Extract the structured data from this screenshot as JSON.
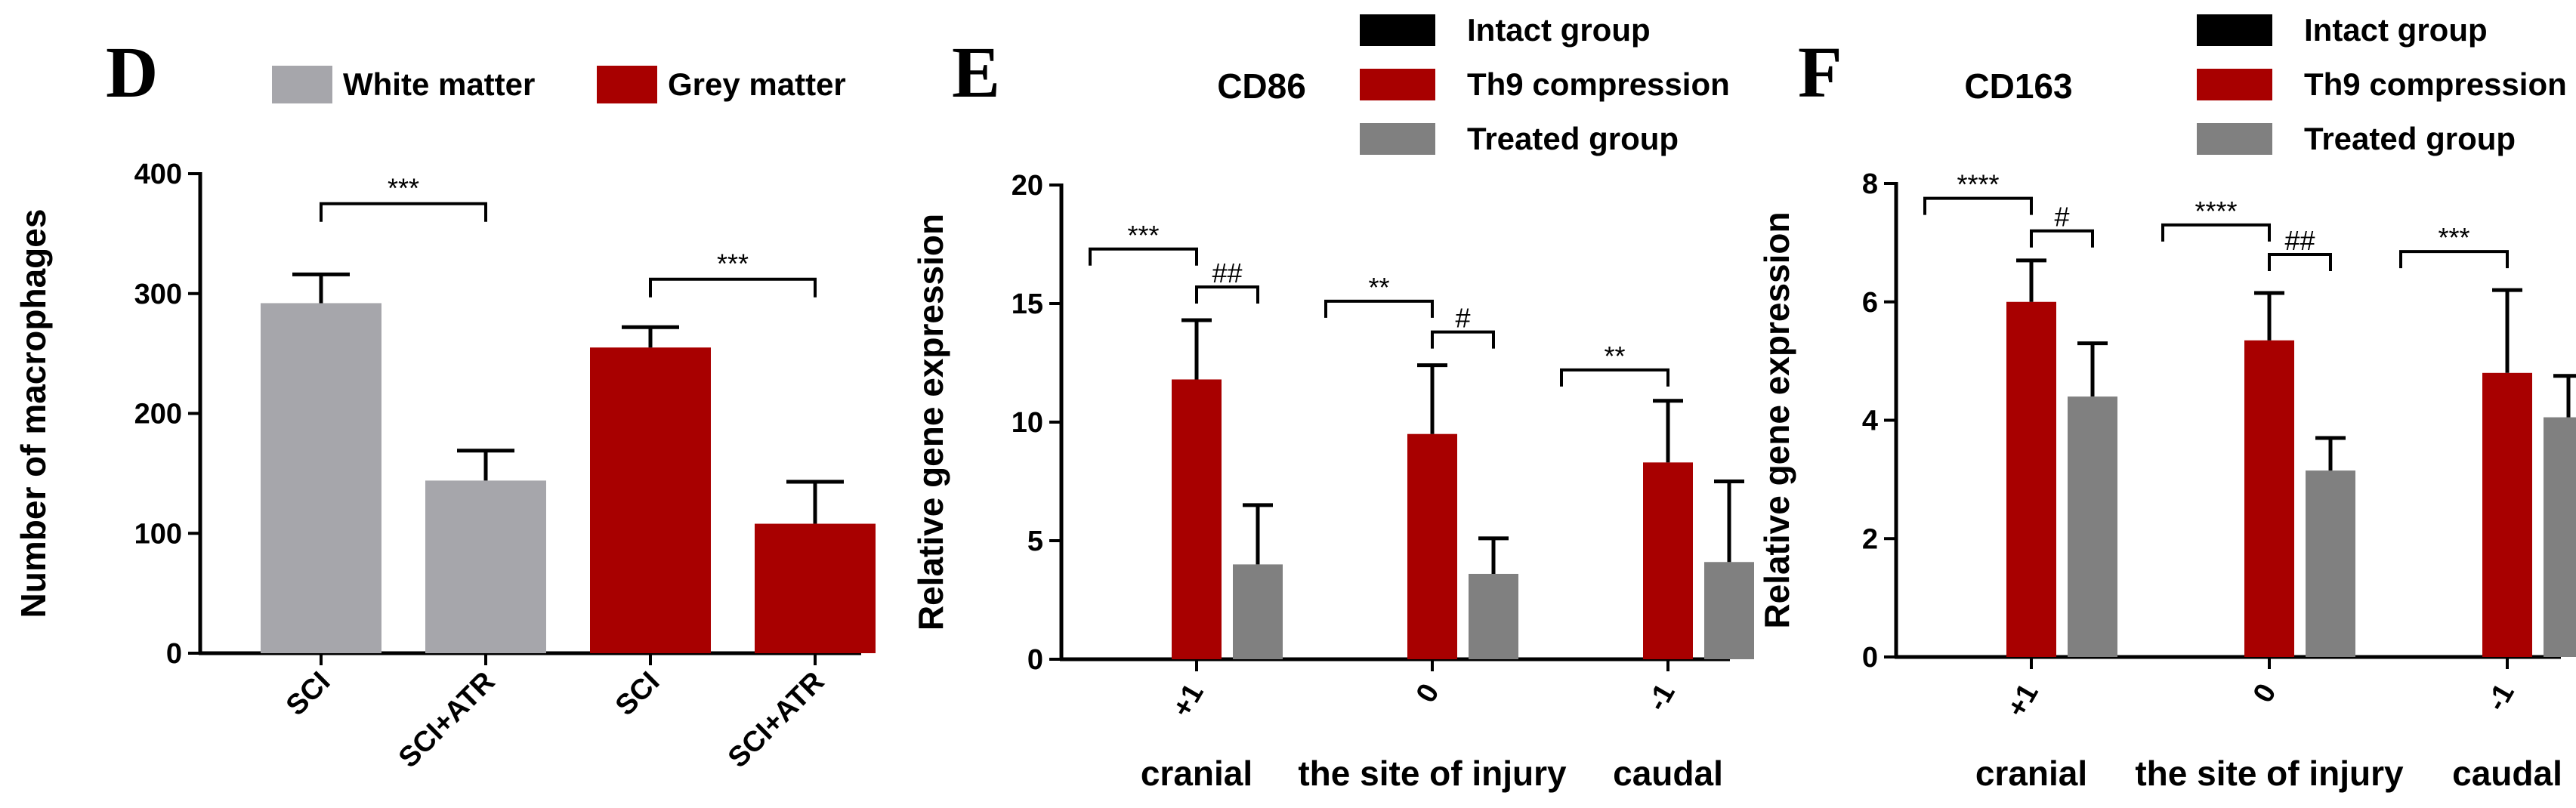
{
  "chart_data": [
    {
      "panel": "D",
      "type": "bar",
      "title": "",
      "ylabel": "Number of macrophages",
      "ylim": [
        0,
        400
      ],
      "yticks": [
        0,
        100,
        200,
        300,
        400
      ],
      "legend": [
        {
          "name": "White matter",
          "color": "#a6a6ab"
        },
        {
          "name": "Grey matter",
          "color": "#a80000"
        }
      ],
      "categories": [
        "SCI",
        "SCI+ATR",
        "SCI",
        "SCI+ATR"
      ],
      "values": [
        292,
        144,
        255,
        108
      ],
      "errors": [
        24,
        25,
        17,
        35
      ],
      "bar_series": [
        "White matter",
        "White matter",
        "Grey matter",
        "Grey matter"
      ],
      "significance": [
        {
          "from": 0,
          "to": 1,
          "label": "***",
          "y": 375
        },
        {
          "from": 2,
          "to": 3,
          "label": "***",
          "y": 312
        }
      ]
    },
    {
      "panel": "E",
      "type": "bar",
      "title": "CD86",
      "ylabel": "Relative gene expression",
      "ylim": [
        0,
        20
      ],
      "yticks": [
        0,
        5,
        10,
        15,
        20
      ],
      "legend": [
        {
          "name": "Intact group",
          "color": "#000000"
        },
        {
          "name": "Th9 compression",
          "color": "#a80000"
        },
        {
          "name": "Treated group",
          "color": "#808080"
        }
      ],
      "categories": [
        "+1",
        "0",
        "-1"
      ],
      "category_descriptions": [
        "cranial",
        "the site of injury",
        "caudal"
      ],
      "series": [
        {
          "name": "Intact group",
          "values": [
            0,
            0,
            0
          ],
          "errors": [
            0,
            0,
            0
          ]
        },
        {
          "name": "Th9 compression",
          "values": [
            11.8,
            9.5,
            8.3
          ],
          "errors": [
            2.5,
            2.9,
            2.6
          ]
        },
        {
          "name": "Treated group",
          "values": [
            4.0,
            3.6,
            4.1
          ],
          "errors": [
            2.5,
            1.5,
            3.4
          ]
        }
      ],
      "significance": [
        {
          "group": 0,
          "from": 0,
          "to": 1,
          "label": "***",
          "y": 17.3
        },
        {
          "group": 0,
          "from": 1,
          "to": 2,
          "label": "##",
          "y": 15.7
        },
        {
          "group": 1,
          "from": 0,
          "to": 1,
          "label": "**",
          "y": 15.1
        },
        {
          "group": 1,
          "from": 1,
          "to": 2,
          "label": "#",
          "y": 13.8
        },
        {
          "group": 2,
          "from": 0,
          "to": 1,
          "label": "**",
          "y": 12.2
        }
      ]
    },
    {
      "panel": "F",
      "type": "bar",
      "title": "CD163",
      "ylabel": "Relative gene expression",
      "ylim": [
        0,
        8
      ],
      "yticks": [
        0,
        2,
        4,
        6,
        8
      ],
      "legend": [
        {
          "name": "Intact group",
          "color": "#000000"
        },
        {
          "name": "Th9 compression",
          "color": "#a80000"
        },
        {
          "name": "Treated group",
          "color": "#808080"
        }
      ],
      "categories": [
        "+1",
        "0",
        "-1"
      ],
      "category_descriptions": [
        "cranial",
        "the site of injury",
        "caudal"
      ],
      "series": [
        {
          "name": "Intact group",
          "values": [
            0,
            0,
            0
          ],
          "errors": [
            0,
            0,
            0
          ]
        },
        {
          "name": "Th9 compression",
          "values": [
            6.0,
            5.35,
            4.8
          ],
          "errors": [
            0.7,
            0.8,
            1.4
          ]
        },
        {
          "name": "Treated group",
          "values": [
            4.4,
            3.15,
            4.05
          ],
          "errors": [
            0.9,
            0.55,
            0.7
          ]
        }
      ],
      "significance": [
        {
          "group": 0,
          "from": 0,
          "to": 1,
          "label": "****",
          "y": 7.75
        },
        {
          "group": 0,
          "from": 1,
          "to": 2,
          "label": "#",
          "y": 7.2
        },
        {
          "group": 1,
          "from": 0,
          "to": 1,
          "label": "****",
          "y": 7.3
        },
        {
          "group": 1,
          "from": 1,
          "to": 2,
          "label": "##",
          "y": 6.8
        },
        {
          "group": 2,
          "from": 0,
          "to": 1,
          "label": "***",
          "y": 6.85
        }
      ]
    }
  ]
}
